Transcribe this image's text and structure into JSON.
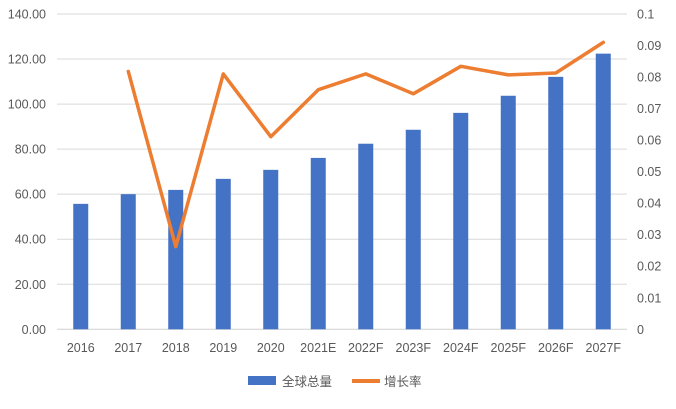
{
  "chart_data": {
    "type": "bar+line",
    "title": "",
    "categories": [
      "2016",
      "2017",
      "2018",
      "2019",
      "2020",
      "2021E",
      "2022F",
      "2023F",
      "2024F",
      "2025F",
      "2026F",
      "2027F"
    ],
    "series": [
      {
        "name": "全球总量",
        "type": "bar",
        "axis": "left",
        "color": "#4472C4",
        "values": [
          55.7,
          60.0,
          61.9,
          66.8,
          70.8,
          76.1,
          82.4,
          88.6,
          96.1,
          103.7,
          112.1,
          122.4
        ]
      },
      {
        "name": "增长率",
        "type": "line",
        "axis": "right",
        "color": "#ED7D31",
        "values": [
          null,
          0.0818,
          0.0262,
          0.081,
          0.0611,
          0.076,
          0.081,
          0.0747,
          0.0834,
          0.0807,
          0.0813,
          0.091
        ]
      }
    ],
    "left_axis": {
      "ylim": [
        0,
        140
      ],
      "ticks": [
        "0.00",
        "20.00",
        "40.00",
        "60.00",
        "80.00",
        "100.00",
        "120.00",
        "140.00"
      ]
    },
    "right_axis": {
      "ylim": [
        0,
        0.1
      ],
      "ticks": [
        "0",
        "0.01",
        "0.02",
        "0.03",
        "0.04",
        "0.05",
        "0.06",
        "0.07",
        "0.08",
        "0.09",
        "0.1"
      ]
    },
    "grid": true,
    "legend": "bottom"
  }
}
